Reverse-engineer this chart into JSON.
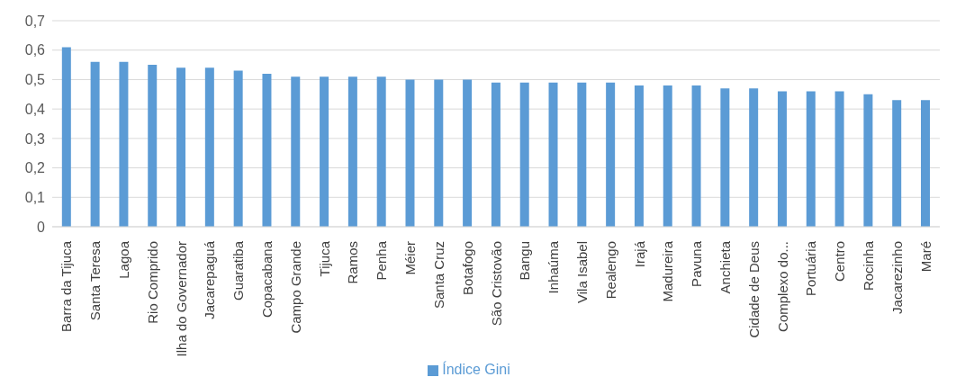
{
  "chart_data": {
    "type": "bar",
    "categories": [
      "Barra da Tijuca",
      "Santa Teresa",
      "Lagoa",
      "Rio Comprido",
      "Ilha do Governador",
      "Jacarepaguá",
      "Guaratiba",
      "Copacabana",
      "Campo Grande",
      "Tijuca",
      "Ramos",
      "Penha",
      "Méier",
      "Santa Cruz",
      "Botafogo",
      "São Cristovão",
      "Bangu",
      "Inhaúma",
      "Vila Isabel",
      "Realengo",
      "Irajá",
      "Madureira",
      "Pavuna",
      "Anchieta",
      "Cidade de Deus",
      "Complexo do...",
      "Portuária",
      "Centro",
      "Rocinha",
      "Jacarezinho",
      "Maré"
    ],
    "series": [
      {
        "name": "Índice Gini",
        "color": "#5b9bd5",
        "values": [
          0.61,
          0.56,
          0.56,
          0.55,
          0.54,
          0.54,
          0.53,
          0.52,
          0.51,
          0.51,
          0.51,
          0.51,
          0.5,
          0.5,
          0.5,
          0.49,
          0.49,
          0.49,
          0.49,
          0.49,
          0.48,
          0.48,
          0.48,
          0.47,
          0.47,
          0.46,
          0.46,
          0.46,
          0.45,
          0.43,
          0.43
        ]
      }
    ],
    "ylim": [
      0,
      0.7
    ],
    "yticks": [
      {
        "value": 0,
        "label": "0"
      },
      {
        "value": 0.1,
        "label": "0,1"
      },
      {
        "value": 0.2,
        "label": "0,2"
      },
      {
        "value": 0.3,
        "label": "0,3"
      },
      {
        "value": 0.4,
        "label": "0,4"
      },
      {
        "value": 0.5,
        "label": "0,5"
      },
      {
        "value": 0.6,
        "label": "0,6"
      },
      {
        "value": 0.7,
        "label": "0,7"
      }
    ],
    "grid": "y",
    "legend": "bottom"
  }
}
